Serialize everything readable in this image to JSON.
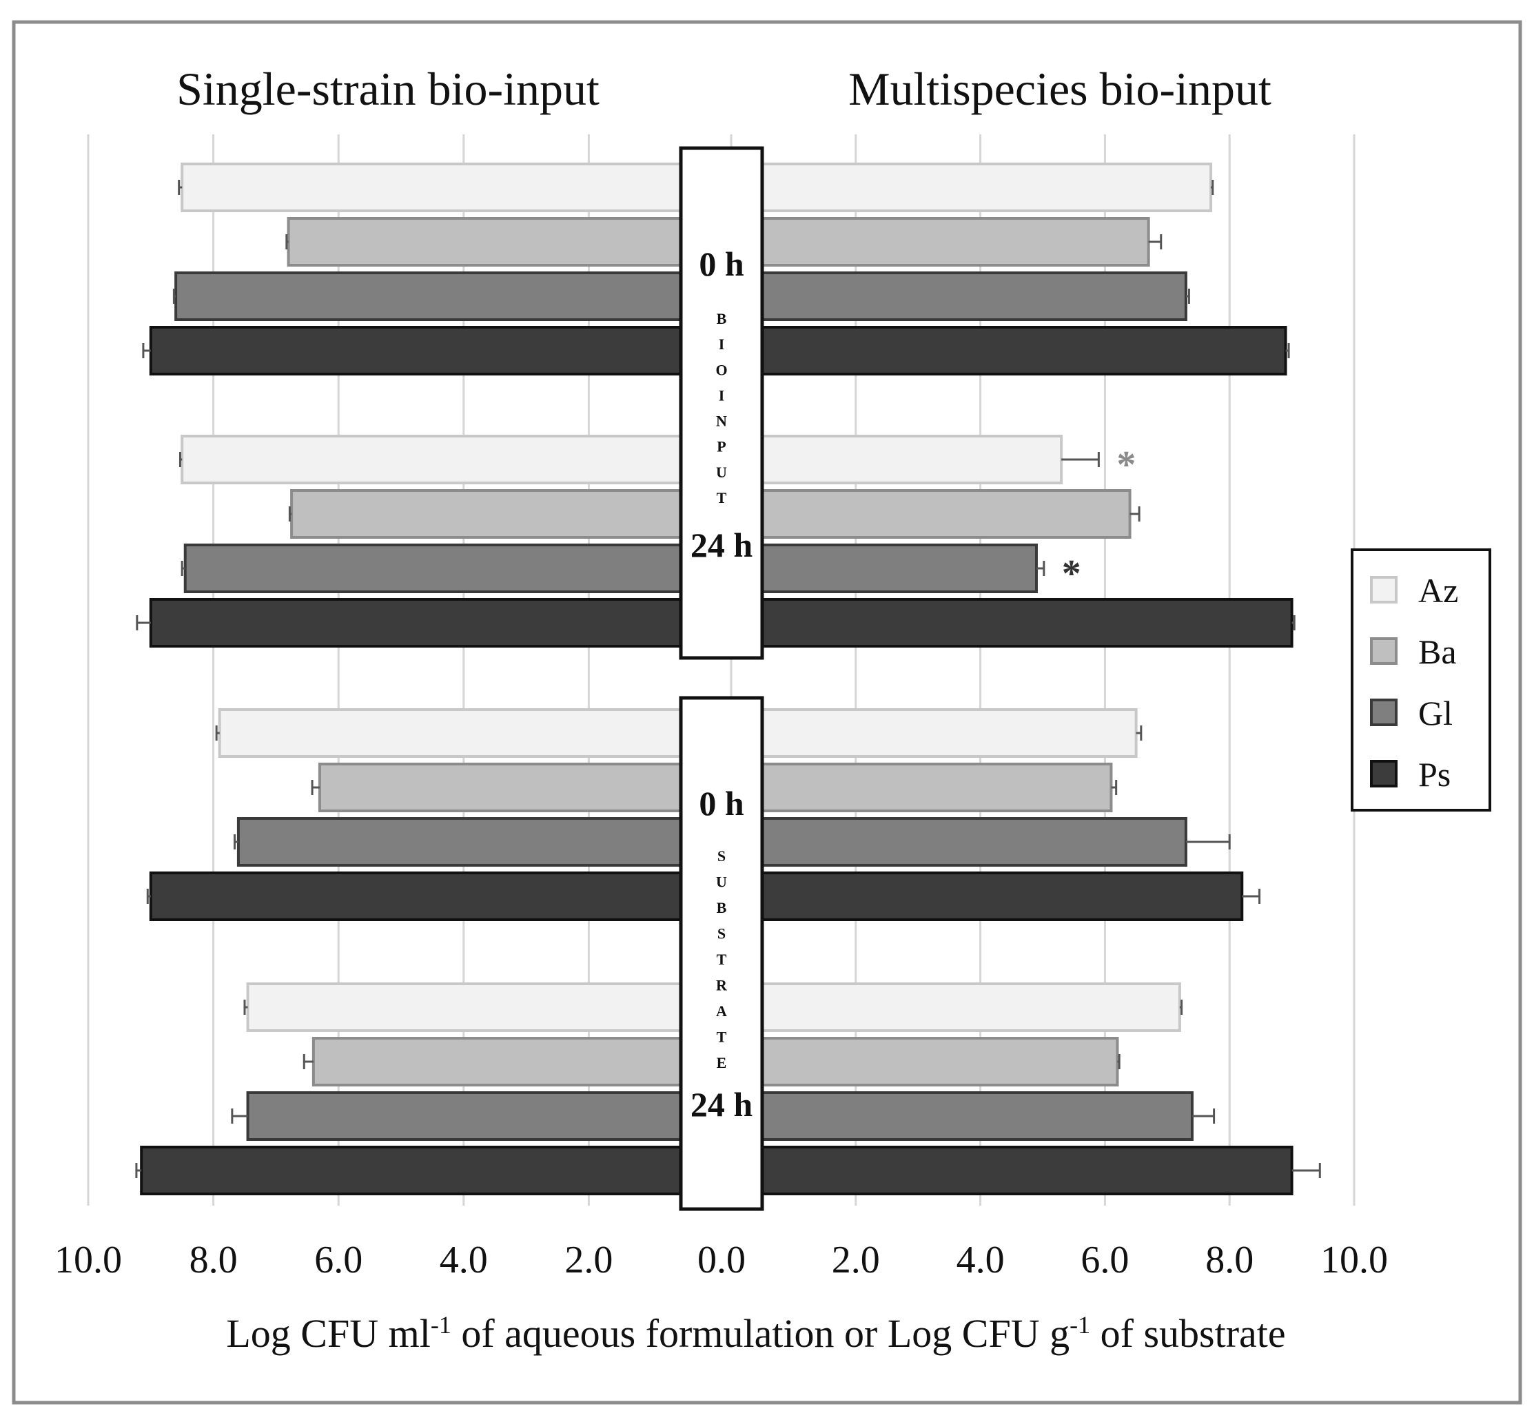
{
  "chart_data": {
    "type": "bar",
    "orientation": "horizontal",
    "layout": "back-to-back",
    "panels": [
      {
        "key": "left",
        "title": "Single-strain bio-input"
      },
      {
        "key": "right",
        "title": "Multispecies bio-input"
      }
    ],
    "xlabel": "Log CFU ml-1 of aqueous formulation or Log CFU g-1 of substrate",
    "xlabel_parts": {
      "p1": "Log CFU ml",
      "sup1": "-1",
      "p2": " of aqueous formulation or Log CFU g",
      "sup2": "-1",
      "p3": " of substrate"
    },
    "xlim": [
      0,
      10
    ],
    "ticks": {
      "left": [
        "10.0",
        "8.0",
        "6.0",
        "4.0",
        "2.0"
      ],
      "center": "0.0",
      "right": [
        "2.0",
        "4.0",
        "6.0",
        "8.0",
        "10.0"
      ]
    },
    "gridlines": true,
    "series": [
      {
        "name": "Az",
        "color": "#f2f2f2",
        "stroke": "#c8c8c8"
      },
      {
        "name": "Ba",
        "color": "#bfbfbf",
        "stroke": "#8c8c8c"
      },
      {
        "name": "Gl",
        "color": "#7f7f7f",
        "stroke": "#3a3a3a"
      },
      {
        "name": "Ps",
        "color": "#3c3c3c",
        "stroke": "#111111"
      }
    ],
    "sections": [
      {
        "label": "BIOINPUT",
        "letters": [
          "B",
          "I",
          "O",
          "I",
          "N",
          "P",
          "U",
          "T"
        ],
        "groups": [
          {
            "time": "0 h",
            "bars": [
              {
                "series": "Az",
                "left": 8.5,
                "left_err": 0.05,
                "right": 7.7,
                "right_err": 0.03
              },
              {
                "series": "Ba",
                "left": 6.8,
                "left_err": 0.03,
                "right": 6.7,
                "right_err": 0.2
              },
              {
                "series": "Gl",
                "left": 8.6,
                "left_err": 0.03,
                "right": 7.3,
                "right_err": 0.05
              },
              {
                "series": "Ps",
                "left": 9.0,
                "left_err": 0.12,
                "right": 8.9,
                "right_err": 0.05
              }
            ]
          },
          {
            "time": "24 h",
            "bars": [
              {
                "series": "Az",
                "left": 8.5,
                "left_err": 0.03,
                "right": 5.3,
                "right_err": 0.6,
                "right_sig": "*"
              },
              {
                "series": "Ba",
                "left": 6.75,
                "left_err": 0.03,
                "right": 6.4,
                "right_err": 0.15
              },
              {
                "series": "Gl",
                "left": 8.45,
                "left_err": 0.05,
                "right": 4.9,
                "right_err": 0.12,
                "right_sig": "*"
              },
              {
                "series": "Ps",
                "left": 9.0,
                "left_err": 0.22,
                "right": 9.0,
                "right_err": 0.04
              }
            ]
          }
        ]
      },
      {
        "label": "SUBSTRATE",
        "letters": [
          "S",
          "U",
          "B",
          "S",
          "T",
          "R",
          "A",
          "T",
          "E"
        ],
        "groups": [
          {
            "time": "0 h",
            "bars": [
              {
                "series": "Az",
                "left": 7.9,
                "left_err": 0.05,
                "right": 6.5,
                "right_err": 0.08
              },
              {
                "series": "Ba",
                "left": 6.3,
                "left_err": 0.12,
                "right": 6.1,
                "right_err": 0.08
              },
              {
                "series": "Gl",
                "left": 7.6,
                "left_err": 0.06,
                "right": 7.3,
                "right_err": 0.7
              },
              {
                "series": "Ps",
                "left": 9.0,
                "left_err": 0.05,
                "right": 8.2,
                "right_err": 0.28
              }
            ]
          },
          {
            "time": "24 h",
            "bars": [
              {
                "series": "Az",
                "left": 7.45,
                "left_err": 0.05,
                "right": 7.2,
                "right_err": 0.03
              },
              {
                "series": "Ba",
                "left": 6.4,
                "left_err": 0.15,
                "right": 6.2,
                "right_err": 0.03
              },
              {
                "series": "Gl",
                "left": 7.45,
                "left_err": 0.25,
                "right": 7.4,
                "right_err": 0.35
              },
              {
                "series": "Ps",
                "left": 9.15,
                "left_err": 0.08,
                "right": 9.0,
                "right_err": 0.45
              }
            ]
          }
        ]
      }
    ],
    "legend": {
      "position": "right",
      "entries": [
        "Az",
        "Ba",
        "Gl",
        "Ps"
      ]
    },
    "significance_colors": {
      "Az": "#8a8a8a",
      "Gl": "#333333"
    }
  }
}
